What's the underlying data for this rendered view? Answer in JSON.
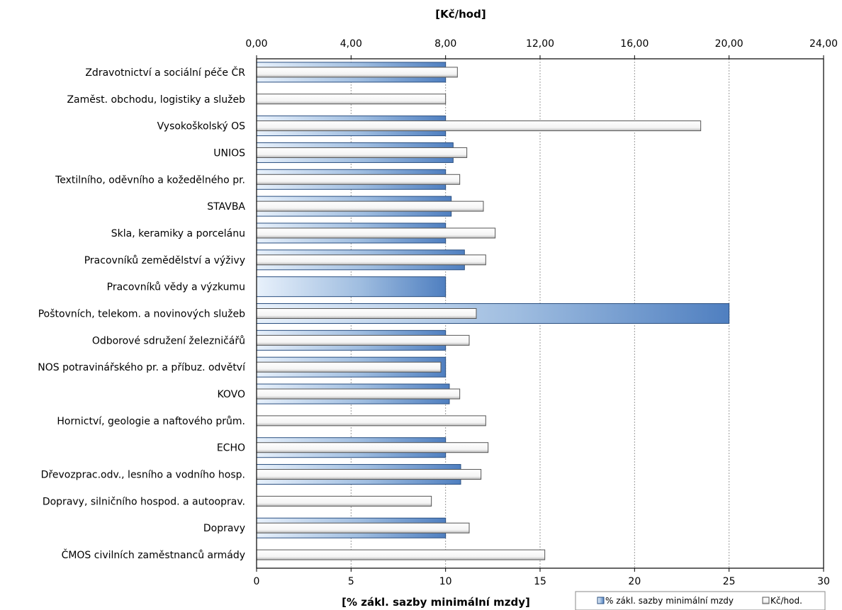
{
  "chart_data": {
    "type": "bar",
    "orientation": "horizontal",
    "top_axis": {
      "label": "[Kč/hod]",
      "range": [
        0,
        24
      ],
      "ticks": [
        "0,00",
        "4,00",
        "8,00",
        "12,00",
        "16,00",
        "20,00",
        "24,00"
      ]
    },
    "bottom_axis": {
      "label": "[% zákl. sazby minimální mzdy]",
      "range": [
        0,
        30
      ],
      "ticks": [
        "0",
        "5",
        "10",
        "15",
        "20",
        "25",
        "30"
      ]
    },
    "grid": "vertical dashed",
    "legend_position": "bottom-right",
    "categories": [
      "Zdravotnictví a sociální péče ČR",
      "Zaměst. obchodu, logistiky a služeb",
      "Vysokoškolský OS",
      "UNIOS",
      "Textilního, oděvního a kožedělného pr.",
      "STAVBA",
      "Skla, keramiky a porcelánu",
      "Pracovníků zemědělství a výživy",
      "Pracovníků vědy a výzkumu",
      "Poštovních, telekom. a novinových služeb",
      "Odborové sdružení železničářů",
      "NOS potravinářského pr. a příbuz. odvětví",
      "KOVO",
      "Hornictví, geologie a naftového prům.",
      "ECHO",
      "Dřevozprac.odv., lesního a vodního hosp.",
      "Dopravy, silničního hospod. a autooprav.",
      "Dopravy",
      "ČMOS civilních zaměstnanců armády"
    ],
    "series": [
      {
        "name": "% zákl. sazby minimální mzdy",
        "axis": "bottom",
        "color": "#4f81bd",
        "values": [
          10,
          0,
          10,
          10.4,
          10,
          10.3,
          10,
          11,
          10,
          25,
          10,
          10,
          10.2,
          0,
          10,
          10.8,
          0,
          10,
          0
        ]
      },
      {
        "name": "Kč/hod.",
        "axis": "top",
        "color": "#ffffff",
        "values": [
          8.5,
          8.0,
          18.8,
          8.9,
          8.6,
          9.6,
          10.1,
          9.7,
          null,
          9.3,
          9.0,
          7.8,
          8.6,
          9.7,
          9.8,
          9.5,
          7.4,
          9.0,
          12.2
        ]
      }
    ]
  }
}
